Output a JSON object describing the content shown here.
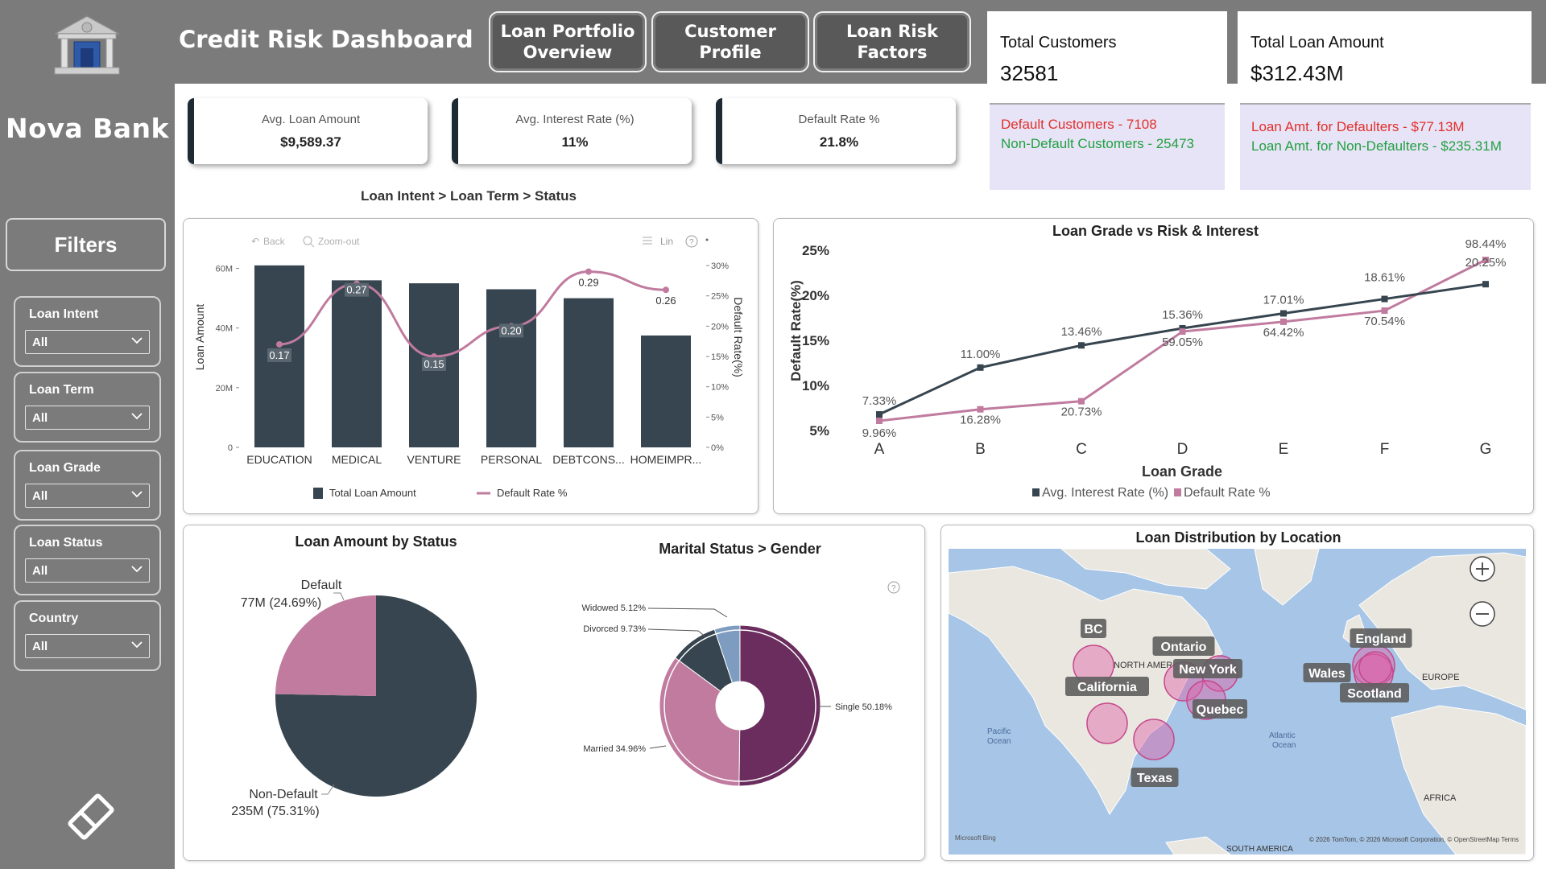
{
  "app": {
    "title": "Credit Risk Dashboard",
    "bank_name": "Nova Bank"
  },
  "nav": [
    {
      "label_line1": "Loan Portfolio",
      "label_line2": "Overview"
    },
    {
      "label_line1": "Customer Profile",
      "label_line2": ""
    },
    {
      "label_line1": "Loan Risk",
      "label_line2": "Factors"
    }
  ],
  "totals": {
    "customers": {
      "label": "Total Customers",
      "value": "32581",
      "line1": "Default Customers - 7108",
      "line2": "Non-Default Customers - 25473"
    },
    "amount": {
      "label": "Total Loan Amount",
      "value": "$312.43M",
      "line1": "Loan Amt. for Defaulters - $77.13M",
      "line2": "Loan Amt. for Non-Defaulters - $235.31M"
    }
  },
  "kpis": [
    {
      "label": "Avg. Loan Amount",
      "value": "$9,589.37"
    },
    {
      "label": "Avg. Interest Rate (%)",
      "value": "11%"
    },
    {
      "label": "Default Rate %",
      "value": "21.8%"
    }
  ],
  "filters": {
    "header": "Filters",
    "items": [
      {
        "label": "Loan Intent",
        "value": "All"
      },
      {
        "label": "Loan Term",
        "value": "All"
      },
      {
        "label": "Loan Grade",
        "value": "All"
      },
      {
        "label": "Loan Status",
        "value": "All"
      },
      {
        "label": "Country",
        "value": "All"
      }
    ]
  },
  "colors": {
    "sidebar": "#7b7b7b",
    "dark": "#36454f",
    "pink": "#c07b9f",
    "purple": "#6a2d5e",
    "steel": "#7d9cc0"
  },
  "breadcrumb": {
    "a": "Loan Intent",
    "b": "Loan Term",
    "c": "Status"
  },
  "chart_toolbar": {
    "back": "Back",
    "zoom_out": "Zoom-out",
    "lin": "Lin"
  },
  "chart_data": [
    {
      "type": "bar",
      "title": "",
      "categories": [
        "EDUCATION",
        "MEDICAL",
        "VENTURE",
        "PERSONAL",
        "DEBTCONS...",
        "HOMEIMPR..."
      ],
      "series": [
        {
          "name": "Total Loan Amount",
          "values": [
            61,
            56,
            55,
            53,
            50,
            37.5
          ]
        },
        {
          "name": "Default Rate %",
          "values": [
            0.17,
            0.27,
            0.15,
            0.2,
            0.29,
            0.26
          ]
        }
      ],
      "data_labels": [
        "0.17",
        "0.27",
        "0.15",
        "0.20",
        "0.29",
        "0.26"
      ],
      "ylabel": "Loan Amount",
      "y2label": "Default Rate(%)",
      "yticks": [
        "0",
        "20M",
        "40M",
        "60M"
      ],
      "y2ticks": [
        "0%",
        "5%",
        "10%",
        "15%",
        "20%",
        "25%",
        "30%"
      ],
      "ylim": [
        0,
        65
      ],
      "y2lim": [
        0,
        0.32
      ]
    },
    {
      "type": "line",
      "title": "Loan Grade vs Risk & Interest",
      "categories": [
        "A",
        "B",
        "C",
        "D",
        "E",
        "F",
        "G"
      ],
      "series": [
        {
          "name": "Avg. Interest Rate (%)",
          "values": [
            7.33,
            11.0,
            13.46,
            15.36,
            17.01,
            18.61,
            20.25
          ]
        },
        {
          "name": "Default Rate %",
          "values": [
            9.96,
            16.28,
            20.73,
            59.05,
            64.42,
            70.54,
            98.44
          ]
        }
      ],
      "labels_interest": [
        "7.33%",
        "11.00%",
        "13.46%",
        "15.36%",
        "17.01%",
        "18.61%",
        "20.25%"
      ],
      "labels_default": [
        "9.96%",
        "16.28%",
        "20.73%",
        "59.05%",
        "64.42%",
        "70.54%",
        "98.44%"
      ],
      "xlabel": "Loan Grade",
      "ylabel": "Default Rate(%)",
      "yticks": [
        "5%",
        "10%",
        "15%",
        "20%",
        "25%"
      ]
    },
    {
      "type": "pie",
      "title": "Loan Amount by Status",
      "slices": [
        {
          "name": "Default",
          "label": "77M (24.69%)",
          "value": 24.69
        },
        {
          "name": "Non-Default",
          "label": "235M (75.31%)",
          "value": 75.31
        }
      ]
    },
    {
      "type": "pie",
      "title": "Marital Status > Gender",
      "slices": [
        {
          "name": "Single",
          "label": "Single 50.18%",
          "value": 50.18
        },
        {
          "name": "Married",
          "label": "Married 34.96%",
          "value": 34.96
        },
        {
          "name": "Divorced",
          "label": "Divorced 9.73%",
          "value": 9.73
        },
        {
          "name": "Widowed",
          "label": "Widowed 5.12%",
          "value": 5.12
        }
      ]
    }
  ],
  "map": {
    "title": "Loan Distribution by Location",
    "labels": [
      "BC",
      "Ontario",
      "New York",
      "California",
      "Quebec",
      "Texas",
      "England",
      "Wales",
      "Scotland"
    ],
    "geo_labels": [
      "NORTH AMER",
      "EUROPE",
      "AFRICA",
      "SOUTH AMERICA",
      "Pacific",
      "Ocean",
      "Atlantic",
      "Ocean"
    ],
    "attribution": "© 2026 TomTom, © 2026 Microsoft Corporation, © OpenStreetMap  Terms",
    "brand": "Microsoft Bing"
  }
}
